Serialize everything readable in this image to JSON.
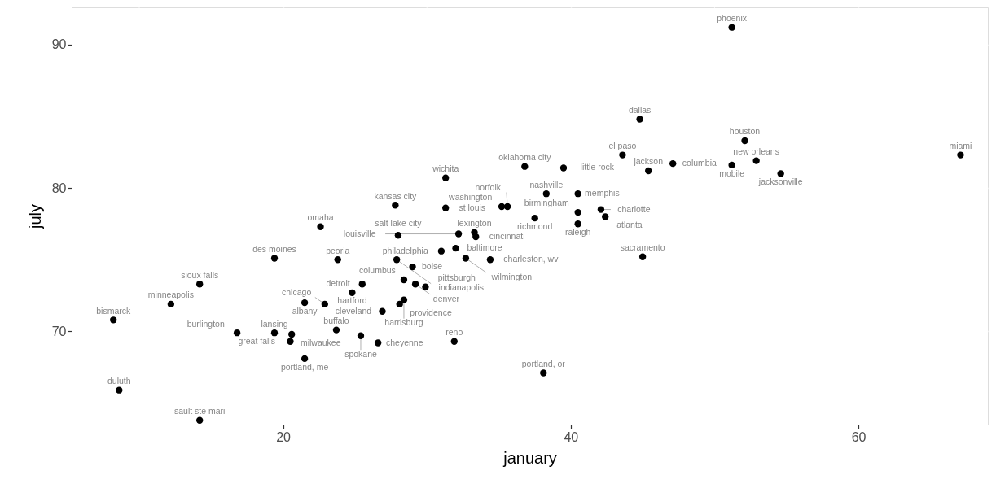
{
  "chart_data": {
    "type": "scatter",
    "xlabel": "january",
    "ylabel": "july",
    "color": "#000000",
    "marker": "circle",
    "grid": true,
    "xlim": [
      5.3,
      69.0
    ],
    "ylim": [
      63.5,
      92.6
    ],
    "xticks": [
      20,
      40,
      60
    ],
    "yticks": [
      70,
      80,
      90
    ],
    "x": [
      51.2,
      44.8,
      52.1,
      52.9,
      51.2,
      54.6,
      67.1,
      43.6,
      45.4,
      47.1,
      36.8,
      39.5,
      38.3,
      40.5,
      40.5,
      40.5,
      42.1,
      42.4,
      37.5,
      35.2,
      35.6,
      45.0,
      31.3,
      31.3,
      27.8,
      22.6,
      28.0,
      32.2,
      33.3,
      33.4,
      32.0,
      27.9,
      31.0,
      32.7,
      34.4,
      23.8,
      19.4,
      29.0,
      28.4,
      29.2,
      29.9,
      25.5,
      24.8,
      21.5,
      22.9,
      28.4,
      28.1,
      26.9,
      19.4,
      20.6,
      20.5,
      23.7,
      25.4,
      26.6,
      31.9,
      21.5,
      38.1,
      16.8,
      8.2,
      12.2,
      14.2,
      8.6,
      14.2
    ],
    "values": [
      91.2,
      84.8,
      83.3,
      81.9,
      81.6,
      81.0,
      82.3,
      82.3,
      81.2,
      81.7,
      81.5,
      81.4,
      79.6,
      79.6,
      78.3,
      77.5,
      78.5,
      78.0,
      77.9,
      78.7,
      78.7,
      75.2,
      80.7,
      78.6,
      78.8,
      77.3,
      76.7,
      76.8,
      76.9,
      76.6,
      75.8,
      75.0,
      75.6,
      75.1,
      75.0,
      75.0,
      75.1,
      74.5,
      73.6,
      73.3,
      73.1,
      73.3,
      72.7,
      72.0,
      71.9,
      72.2,
      71.9,
      71.4,
      69.9,
      69.8,
      69.3,
      70.1,
      69.7,
      69.2,
      69.3,
      68.1,
      67.1,
      69.9,
      70.8,
      71.9,
      73.3,
      65.9,
      63.8
    ],
    "value_labels": [
      "phoenix",
      "dallas",
      "houston",
      "new orleans",
      "mobile",
      "jacksonville",
      "miami",
      "el paso",
      "jackson",
      "columbia",
      "oklahoma city",
      "little rock",
      "nashville",
      "memphis",
      "birmingham",
      "raleigh",
      "charlotte",
      "atlanta",
      "richmond",
      "washington",
      "norfolk",
      "sacramento",
      "wichita",
      "st louis",
      "kansas city",
      "omaha",
      "salt lake city",
      "louisville",
      "lexington",
      "cincinnati",
      "baltimore",
      "indianapolis",
      "philadelphia",
      "wilmington",
      "charleston, wv",
      "peoria",
      "des moines",
      "boise",
      "columbus",
      "denver",
      "pittsburgh",
      "detroit",
      "hartford",
      "albany",
      "chicago",
      "harrisburg",
      "providence",
      "cleveland",
      "lansing",
      "milwaukee",
      "great falls",
      "buffalo",
      "spokane",
      "cheyenne",
      "reno",
      "portland, me",
      "portland, or",
      "burlington",
      "bismarck",
      "minneapolis",
      "sioux falls",
      "duluth",
      "sault ste mari"
    ]
  }
}
